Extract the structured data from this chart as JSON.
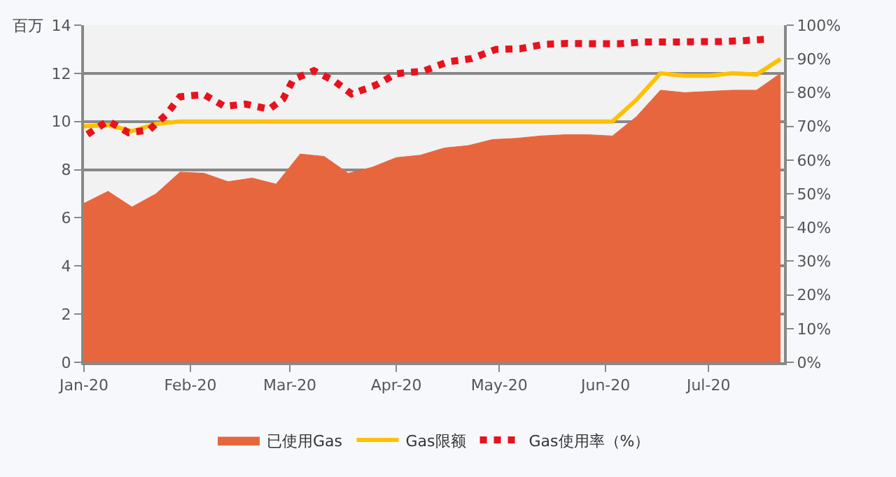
{
  "chart_data": {
    "type": "area",
    "ylabel": "百万",
    "x": [
      "2020-01-01",
      "2020-01-08",
      "2020-01-15",
      "2020-01-22",
      "2020-01-29",
      "2020-02-05",
      "2020-02-12",
      "2020-02-19",
      "2020-02-26",
      "2020-03-04",
      "2020-03-11",
      "2020-03-18",
      "2020-03-25",
      "2020-04-01",
      "2020-04-08",
      "2020-04-15",
      "2020-04-22",
      "2020-04-29",
      "2020-05-06",
      "2020-05-13",
      "2020-05-20",
      "2020-05-27",
      "2020-06-03",
      "2020-06-10",
      "2020-06-17",
      "2020-06-24",
      "2020-07-01",
      "2020-07-08",
      "2020-07-15",
      "2020-07-22"
    ],
    "series": [
      {
        "name": "已使用Gas",
        "color": "#e8663d",
        "values": [
          6.6,
          7.1,
          6.45,
          7.0,
          7.9,
          7.85,
          7.5,
          7.65,
          7.4,
          8.65,
          8.55,
          7.85,
          8.1,
          8.5,
          8.6,
          8.9,
          9.0,
          9.25,
          9.3,
          9.4,
          9.45,
          9.45,
          9.4,
          10.2,
          11.3,
          11.2,
          11.25,
          11.3,
          11.3,
          12.0
        ]
      },
      {
        "name": "Gas限额",
        "type": "line",
        "line_style": "solid",
        "color": "#ffc000",
        "values": [
          9.8,
          9.85,
          9.6,
          9.9,
          10.0,
          10.0,
          10.0,
          10.0,
          10.0,
          10.0,
          10.0,
          10.0,
          10.0,
          10.0,
          10.0,
          10.0,
          10.0,
          10.0,
          10.0,
          10.0,
          10.0,
          10.0,
          10.0,
          10.9,
          12.0,
          11.9,
          11.9,
          12.0,
          11.95,
          12.6
        ]
      },
      {
        "name": "Gas使用率（%）",
        "type": "line",
        "line_style": "dotted",
        "axis": "y2",
        "color": "#e8121e",
        "x": [
          "2020-01-02",
          "2020-01-08",
          "2020-01-14",
          "2020-01-20",
          "2020-01-25",
          "2020-01-29",
          "2020-02-05",
          "2020-02-11",
          "2020-02-17",
          "2020-02-24",
          "2020-02-28",
          "2020-03-02",
          "2020-03-08",
          "2020-03-14",
          "2020-03-19",
          "2020-03-26",
          "2020-04-01",
          "2020-04-09",
          "2020-04-16",
          "2020-04-23",
          "2020-04-30",
          "2020-05-07",
          "2020-05-14",
          "2020-05-21",
          "2020-05-29",
          "2020-06-05",
          "2020-06-12",
          "2020-06-20",
          "2020-06-27",
          "2020-07-04",
          "2020-07-11",
          "2020-07-19"
        ],
        "values": [
          67.6,
          71.6,
          68.1,
          68.9,
          73.5,
          78.8,
          79.4,
          75.9,
          76.6,
          75.1,
          78.1,
          83.9,
          86.5,
          83.4,
          79.6,
          82.2,
          85.6,
          86.4,
          89.1,
          90.1,
          92.8,
          93.0,
          94.3,
          94.6,
          94.5,
          94.5,
          95.0,
          95.0,
          95.1,
          95.1,
          95.4,
          95.9
        ]
      }
    ],
    "xlim": [
      "2020-01-01",
      "2020-07-23"
    ],
    "xticks": [
      {
        "value": "2020-01-01",
        "label": "Jan-20"
      },
      {
        "value": "2020-02-01",
        "label": "Feb-20"
      },
      {
        "value": "2020-03-01",
        "label": "Mar-20"
      },
      {
        "value": "2020-04-01",
        "label": "Apr-20"
      },
      {
        "value": "2020-05-01",
        "label": "May-20"
      },
      {
        "value": "2020-06-01",
        "label": "Jun-20"
      },
      {
        "value": "2020-07-01",
        "label": "Jul-20"
      }
    ],
    "ylim": [
      0,
      14
    ],
    "yticks": [
      0,
      2,
      4,
      6,
      8,
      10,
      12,
      14
    ],
    "y2lim": [
      0,
      100
    ],
    "y2ticks": [
      {
        "value": 0,
        "label": "0%"
      },
      {
        "value": 10,
        "label": "10%"
      },
      {
        "value": 20,
        "label": "20%"
      },
      {
        "value": 30,
        "label": "30%"
      },
      {
        "value": 40,
        "label": "40%"
      },
      {
        "value": 50,
        "label": "50%"
      },
      {
        "value": 60,
        "label": "60%"
      },
      {
        "value": 70,
        "label": "70%"
      },
      {
        "value": 80,
        "label": "80%"
      },
      {
        "value": 90,
        "label": "90%"
      },
      {
        "value": 100,
        "label": "100%"
      }
    ],
    "grid": "y",
    "legend": "bottom",
    "marker": "none"
  }
}
